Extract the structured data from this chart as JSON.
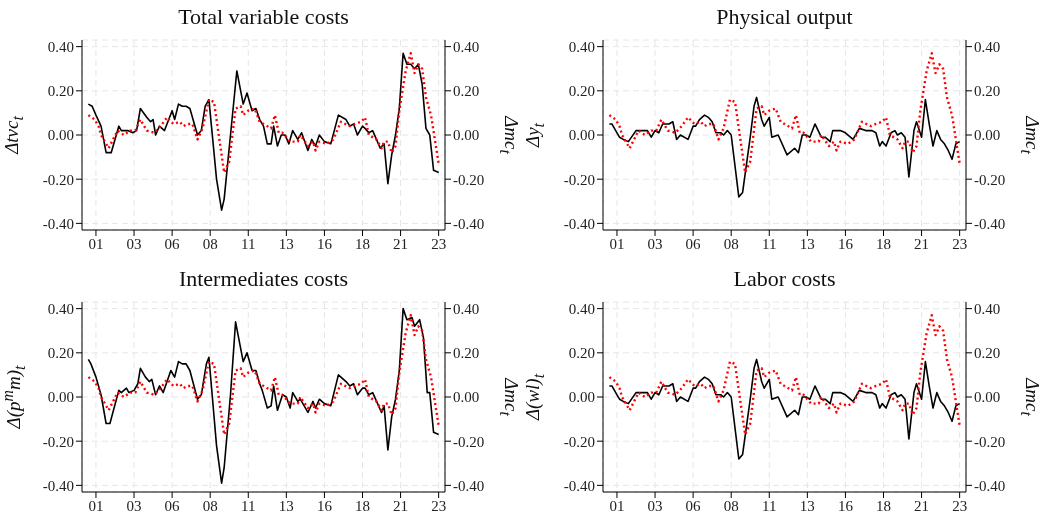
{
  "chart_data": [
    {
      "type": "line",
      "title": "Total variable costs",
      "ylabel": "Δtvc$_{t}$",
      "y2label": "Δmc$_{t}$",
      "xlim": [
        "2000-02",
        "2023-12"
      ],
      "ylim": [
        -0.43,
        0.43
      ],
      "y2lim": [
        -0.43,
        0.43
      ],
      "xticks": [
        {
          "value": "2001-01",
          "label": "01"
        },
        {
          "value": "2003-07",
          "label": "03"
        },
        {
          "value": "2006-01",
          "label": "06"
        },
        {
          "value": "2008-07",
          "label": "08"
        },
        {
          "value": "2011-01",
          "label": "11"
        },
        {
          "value": "2013-07",
          "label": "13"
        },
        {
          "value": "2016-01",
          "label": "16"
        },
        {
          "value": "2018-07",
          "label": "18"
        },
        {
          "value": "2021-01",
          "label": "21"
        },
        {
          "value": "2023-07",
          "label": "23"
        }
      ],
      "yticks": [
        {
          "value": -0.4,
          "label": "-0.40"
        },
        {
          "value": -0.2,
          "label": "-0.20"
        },
        {
          "value": 0,
          "label": "0.00"
        },
        {
          "value": 0.2,
          "label": "0.20"
        },
        {
          "value": 0.4,
          "label": "0.40"
        }
      ],
      "y2ticks": [
        {
          "value": -0.4,
          "label": "-0.40"
        },
        {
          "value": -0.2,
          "label": "-0.20"
        },
        {
          "value": 0,
          "label": "0.00"
        },
        {
          "value": 0.2,
          "label": "0.20"
        },
        {
          "value": 0.4,
          "label": "0.40"
        }
      ],
      "grid": true,
      "series": [
        {
          "color": "#000000",
          "line_style": "solid",
          "x": [
            "2000-07",
            "2000-10",
            "2001-01",
            "2001-05",
            "2001-09",
            "2002-01",
            "2002-07",
            "2002-09",
            "2003-02",
            "2003-06",
            "2003-09",
            "2003-12",
            "2004-05",
            "2004-08",
            "2004-10",
            "2004-12",
            "2005-03",
            "2005-07",
            "2006-01",
            "2006-03",
            "2006-06",
            "2006-09",
            "2006-12",
            "2007-03",
            "2007-09",
            "2007-12",
            "2008-03",
            "2008-06",
            "2008-12",
            "2009-04",
            "2009-06",
            "2009-11",
            "2010-04",
            "2010-09",
            "2010-12",
            "2011-04",
            "2011-07",
            "2011-10",
            "2012-01",
            "2012-04",
            "2012-07",
            "2012-09",
            "2012-12",
            "2013-03",
            "2013-06",
            "2013-09",
            "2013-12",
            "2014-04",
            "2014-07",
            "2014-12",
            "2015-03",
            "2015-06",
            "2015-09",
            "2016-01",
            "2016-06",
            "2016-12",
            "2017-06",
            "2017-09",
            "2017-12",
            "2018-03",
            "2018-07",
            "2018-09",
            "2018-12",
            "2019-03",
            "2019-09",
            "2019-12",
            "2020-03",
            "2020-06",
            "2020-09",
            "2020-12",
            "2021-03",
            "2021-06",
            "2021-09",
            "2021-12",
            "2022-03",
            "2022-06",
            "2022-09",
            "2022-12",
            "2023-03",
            "2023-07"
          ],
          "values": [
            0.14,
            0.13,
            0.09,
            0.04,
            -0.08,
            -0.08,
            0.04,
            0.02,
            0.02,
            0.01,
            0.02,
            0.12,
            0.08,
            0.06,
            0.07,
            0.0,
            0.04,
            0.02,
            0.11,
            0.07,
            0.14,
            0.13,
            0.13,
            0.12,
            0.0,
            0.02,
            0.13,
            0.16,
            -0.2,
            -0.34,
            -0.29,
            0.0,
            0.29,
            0.14,
            0.19,
            0.11,
            0.12,
            0.07,
            0.04,
            -0.04,
            -0.04,
            0.04,
            -0.05,
            0.0,
            0.0,
            -0.04,
            0.02,
            -0.02,
            0.01,
            -0.07,
            -0.02,
            -0.05,
            0.0,
            -0.03,
            -0.04,
            0.09,
            0.07,
            0.04,
            0.05,
            0.0,
            0.04,
            0.03,
            0.01,
            0.02,
            -0.06,
            -0.04,
            -0.22,
            -0.09,
            0.0,
            0.12,
            0.37,
            0.32,
            0.32,
            0.3,
            0.32,
            0.23,
            0.03,
            0.0,
            -0.16,
            -0.17
          ]
        },
        {
          "color": "#ff0000",
          "line_style": "dotted",
          "axis": "y2",
          "x": [
            "2000-07",
            "2000-12",
            "2001-03",
            "2001-05",
            "2001-11",
            "2002-06",
            "2002-11",
            "2003-04",
            "2003-08",
            "2003-12",
            "2004-05",
            "2004-11",
            "2005-04",
            "2005-09",
            "2006-02",
            "2006-07",
            "2006-10",
            "2007-01",
            "2007-05",
            "2007-09",
            "2008-01",
            "2008-06",
            "2008-10",
            "2009-06",
            "2009-10",
            "2010-03",
            "2010-07",
            "2010-09",
            "2011-01",
            "2011-06",
            "2011-10",
            "2012-04",
            "2012-07",
            "2012-10",
            "2013-01",
            "2013-04",
            "2013-10",
            "2014-04",
            "2014-06",
            "2014-12",
            "2015-04",
            "2015-06",
            "2015-09",
            "2016-03",
            "2016-08",
            "2017-02",
            "2017-09",
            "2018-01",
            "2018-06",
            "2018-09",
            "2018-12",
            "2019-06",
            "2019-10",
            "2019-12",
            "2020-03",
            "2020-06",
            "2020-09",
            "2020-12",
            "2021-05",
            "2021-09",
            "2021-12",
            "2022-03",
            "2022-06",
            "2022-09",
            "2023-01",
            "2023-07"
          ],
          "values": [
            0.09,
            0.07,
            0.04,
            0.0,
            -0.06,
            0.02,
            0.0,
            0.02,
            0.02,
            0.07,
            0.02,
            0.01,
            0.04,
            0.08,
            0.05,
            0.06,
            0.04,
            0.05,
            0.05,
            -0.02,
            0.03,
            0.16,
            0.15,
            -0.17,
            -0.12,
            0.12,
            0.13,
            0.09,
            0.11,
            0.12,
            0.06,
            0.04,
            0.03,
            0.09,
            0.01,
            0.01,
            -0.03,
            -0.03,
            0.0,
            -0.05,
            -0.03,
            -0.07,
            -0.03,
            -0.04,
            -0.02,
            0.06,
            0.04,
            0.05,
            0.06,
            0.08,
            0.0,
            -0.02,
            -0.06,
            -0.03,
            -0.03,
            -0.08,
            -0.05,
            0.11,
            0.29,
            0.37,
            0.28,
            0.32,
            0.3,
            0.17,
            0.09,
            -0.13
          ]
        }
      ]
    },
    {
      "type": "line",
      "title": "Physical output",
      "ylabel": "Δy$_{t}$",
      "y2label": "Δmc$_{t}$",
      "xlim": [
        "2000-02",
        "2023-12"
      ],
      "ylim": [
        -0.43,
        0.43
      ],
      "y2lim": [
        -0.43,
        0.43
      ],
      "xticks": [
        {
          "value": "2001-01",
          "label": "01"
        },
        {
          "value": "2003-07",
          "label": "03"
        },
        {
          "value": "2006-01",
          "label": "06"
        },
        {
          "value": "2008-07",
          "label": "08"
        },
        {
          "value": "2011-01",
          "label": "11"
        },
        {
          "value": "2013-07",
          "label": "13"
        },
        {
          "value": "2016-01",
          "label": "16"
        },
        {
          "value": "2018-07",
          "label": "18"
        },
        {
          "value": "2021-01",
          "label": "21"
        },
        {
          "value": "2023-07",
          "label": "23"
        }
      ],
      "yticks": [
        {
          "value": -0.4,
          "label": "-0.40"
        },
        {
          "value": -0.2,
          "label": "-0.20"
        },
        {
          "value": 0,
          "label": "0.00"
        },
        {
          "value": 0.2,
          "label": "0.20"
        },
        {
          "value": 0.4,
          "label": "0.40"
        }
      ],
      "y2ticks": [
        {
          "value": -0.4,
          "label": "-0.40"
        },
        {
          "value": -0.2,
          "label": "-0.20"
        },
        {
          "value": 0,
          "label": "0.00"
        },
        {
          "value": 0.2,
          "label": "0.20"
        },
        {
          "value": 0.4,
          "label": "0.40"
        }
      ],
      "grid": true,
      "series": [
        {
          "color": "#000000",
          "line_style": "solid",
          "x": [
            "2000-07",
            "2000-09",
            "2001-01",
            "2001-03",
            "2001-06",
            "2001-10",
            "2002-04",
            "2002-07",
            "2003-01",
            "2003-04",
            "2003-07",
            "2003-10",
            "2004-01",
            "2004-06",
            "2004-09",
            "2004-12",
            "2005-03",
            "2005-09",
            "2006-01",
            "2006-03",
            "2006-06",
            "2006-10",
            "2007-01",
            "2007-04",
            "2007-07",
            "2007-11",
            "2008-01",
            "2008-04",
            "2008-07",
            "2009-01",
            "2009-04",
            "2009-10",
            "2010-01",
            "2010-03",
            "2010-07",
            "2010-09",
            "2011-01",
            "2011-03",
            "2011-08",
            "2012-03",
            "2012-09",
            "2012-12",
            "2013-03",
            "2013-06",
            "2013-09",
            "2014-01",
            "2014-06",
            "2014-09",
            "2015-01",
            "2015-03",
            "2015-09",
            "2016-01",
            "2016-07",
            "2016-12",
            "2017-05",
            "2017-10",
            "2018-01",
            "2018-04",
            "2018-06",
            "2018-09",
            "2019-01",
            "2019-04",
            "2019-06",
            "2019-09",
            "2019-12",
            "2020-03",
            "2020-07",
            "2020-09",
            "2021-01",
            "2021-04",
            "2021-07",
            "2021-10",
            "2022-01",
            "2022-04",
            "2022-07",
            "2022-10",
            "2023-01",
            "2023-04",
            "2023-07"
          ],
          "values": [
            0.05,
            0.05,
            0.01,
            -0.01,
            -0.02,
            -0.03,
            0.02,
            0.02,
            0.02,
            -0.01,
            0.02,
            0.01,
            0.05,
            0.05,
            0.06,
            -0.02,
            0.0,
            -0.02,
            0.04,
            0.04,
            0.07,
            0.09,
            0.08,
            0.06,
            0.01,
            0.01,
            0.0,
            0.02,
            0.0,
            -0.28,
            -0.26,
            -0.01,
            0.13,
            0.17,
            0.07,
            0.04,
            0.08,
            -0.01,
            0.0,
            -0.09,
            -0.06,
            -0.08,
            0.0,
            0.0,
            -0.01,
            0.05,
            -0.01,
            -0.01,
            -0.03,
            0.02,
            0.02,
            0.01,
            -0.02,
            0.03,
            0.02,
            0.02,
            0.01,
            -0.05,
            -0.03,
            -0.05,
            0.01,
            0.02,
            0.0,
            0.01,
            -0.01,
            -0.19,
            0.02,
            0.06,
            -0.01,
            0.16,
            0.05,
            -0.05,
            0.02,
            -0.02,
            -0.04,
            -0.07,
            -0.11,
            -0.04,
            -0.03
          ]
        },
        {
          "color": "#ff0000",
          "line_style": "dotted",
          "axis": "y2",
          "x": [
            "2000-07",
            "2000-12",
            "2001-03",
            "2001-05",
            "2001-11",
            "2002-06",
            "2002-11",
            "2003-04",
            "2003-08",
            "2003-12",
            "2004-05",
            "2004-11",
            "2005-04",
            "2005-09",
            "2006-02",
            "2006-07",
            "2006-10",
            "2007-01",
            "2007-05",
            "2007-09",
            "2008-01",
            "2008-06",
            "2008-10",
            "2009-06",
            "2009-10",
            "2010-03",
            "2010-07",
            "2010-09",
            "2011-01",
            "2011-06",
            "2011-10",
            "2012-04",
            "2012-07",
            "2012-10",
            "2013-01",
            "2013-04",
            "2013-10",
            "2014-04",
            "2014-06",
            "2014-12",
            "2015-04",
            "2015-06",
            "2015-09",
            "2016-03",
            "2016-08",
            "2017-02",
            "2017-09",
            "2018-01",
            "2018-06",
            "2018-09",
            "2018-12",
            "2019-06",
            "2019-10",
            "2019-12",
            "2020-03",
            "2020-06",
            "2020-09",
            "2020-12",
            "2021-05",
            "2021-09",
            "2021-12",
            "2022-03",
            "2022-06",
            "2022-09",
            "2023-01",
            "2023-07"
          ],
          "values": [
            0.09,
            0.07,
            0.04,
            0.0,
            -0.06,
            0.02,
            0.0,
            0.02,
            0.02,
            0.07,
            0.02,
            0.01,
            0.04,
            0.08,
            0.05,
            0.06,
            0.04,
            0.05,
            0.05,
            -0.02,
            0.03,
            0.16,
            0.15,
            -0.17,
            -0.12,
            0.12,
            0.13,
            0.09,
            0.11,
            0.12,
            0.06,
            0.04,
            0.03,
            0.09,
            0.01,
            0.01,
            -0.03,
            -0.03,
            0.0,
            -0.05,
            -0.03,
            -0.07,
            -0.03,
            -0.04,
            -0.02,
            0.06,
            0.04,
            0.05,
            0.06,
            0.08,
            0.0,
            -0.02,
            -0.06,
            -0.03,
            -0.03,
            -0.08,
            -0.05,
            0.11,
            0.29,
            0.37,
            0.28,
            0.32,
            0.3,
            0.17,
            0.09,
            -0.13
          ]
        }
      ]
    },
    {
      "type": "line",
      "title": "Intermediates costs",
      "ylabel": "Δ(p$^{m}$m)$_{t}$",
      "y2label": "Δmc$_{t}$",
      "xlim": [
        "2000-02",
        "2023-12"
      ],
      "ylim": [
        -0.43,
        0.43
      ],
      "y2lim": [
        -0.43,
        0.43
      ],
      "xticks": [
        {
          "value": "2001-01",
          "label": "01"
        },
        {
          "value": "2003-07",
          "label": "03"
        },
        {
          "value": "2006-01",
          "label": "06"
        },
        {
          "value": "2008-07",
          "label": "08"
        },
        {
          "value": "2011-01",
          "label": "11"
        },
        {
          "value": "2013-07",
          "label": "13"
        },
        {
          "value": "2016-01",
          "label": "16"
        },
        {
          "value": "2018-07",
          "label": "18"
        },
        {
          "value": "2021-01",
          "label": "21"
        },
        {
          "value": "2023-07",
          "label": "23"
        }
      ],
      "yticks": [
        {
          "value": -0.4,
          "label": "-0.40"
        },
        {
          "value": -0.2,
          "label": "-0.20"
        },
        {
          "value": 0,
          "label": "0.00"
        },
        {
          "value": 0.2,
          "label": "0.20"
        },
        {
          "value": 0.4,
          "label": "0.40"
        }
      ],
      "y2ticks": [
        {
          "value": -0.4,
          "label": "-0.40"
        },
        {
          "value": -0.2,
          "label": "-0.20"
        },
        {
          "value": 0,
          "label": "0.00"
        },
        {
          "value": 0.2,
          "label": "0.20"
        },
        {
          "value": 0.4,
          "label": "0.40"
        }
      ],
      "grid": true,
      "series": [
        {
          "color": "#000000",
          "line_style": "solid",
          "x": [
            "2000-07",
            "2000-09",
            "2001-01",
            "2001-05",
            "2001-09",
            "2001-12",
            "2002-07",
            "2002-09",
            "2003-01",
            "2003-03",
            "2003-07",
            "2003-10",
            "2003-12",
            "2004-04",
            "2004-07",
            "2004-09",
            "2004-12",
            "2005-03",
            "2005-06",
            "2005-12",
            "2006-03",
            "2006-06",
            "2006-09",
            "2006-12",
            "2007-03",
            "2007-09",
            "2007-12",
            "2008-04",
            "2008-06",
            "2008-12",
            "2009-04",
            "2009-06",
            "2009-11",
            "2010-03",
            "2010-09",
            "2010-12",
            "2011-04",
            "2011-07",
            "2011-10",
            "2011-12",
            "2012-04",
            "2012-07",
            "2012-09",
            "2012-12",
            "2013-04",
            "2013-07",
            "2013-10",
            "2013-12",
            "2014-04",
            "2014-06",
            "2014-12",
            "2015-04",
            "2015-06",
            "2015-09",
            "2016-01",
            "2016-06",
            "2016-12",
            "2017-06",
            "2017-09",
            "2017-12",
            "2018-03",
            "2018-07",
            "2018-09",
            "2018-12",
            "2019-03",
            "2019-10",
            "2019-12",
            "2020-03",
            "2020-06",
            "2020-09",
            "2020-12",
            "2021-03",
            "2021-06",
            "2021-10",
            "2021-12",
            "2022-04",
            "2022-07",
            "2022-10",
            "2022-12",
            "2023-03",
            "2023-07"
          ],
          "values": [
            0.17,
            0.15,
            0.09,
            0.01,
            -0.12,
            -0.12,
            0.03,
            0.02,
            0.04,
            0.02,
            0.03,
            0.06,
            0.13,
            0.09,
            0.07,
            0.08,
            0.01,
            0.05,
            0.02,
            0.12,
            0.09,
            0.16,
            0.15,
            0.15,
            0.12,
            -0.01,
            0.01,
            0.15,
            0.18,
            -0.22,
            -0.39,
            -0.32,
            0.01,
            0.34,
            0.16,
            0.2,
            0.12,
            0.12,
            0.06,
            0.03,
            -0.05,
            -0.04,
            0.05,
            -0.06,
            0.01,
            0.0,
            -0.05,
            0.02,
            -0.02,
            -0.01,
            -0.07,
            -0.02,
            -0.05,
            -0.01,
            -0.03,
            -0.04,
            0.1,
            0.07,
            0.05,
            0.06,
            0.01,
            0.04,
            0.04,
            0.01,
            0.02,
            -0.07,
            -0.04,
            -0.24,
            -0.09,
            -0.01,
            0.12,
            0.4,
            0.35,
            0.36,
            0.32,
            0.35,
            0.27,
            0.02,
            0.02,
            -0.16,
            -0.17
          ]
        },
        {
          "color": "#ff0000",
          "line_style": "dotted",
          "axis": "y2",
          "x": [
            "2000-07",
            "2000-12",
            "2001-03",
            "2001-05",
            "2001-11",
            "2002-06",
            "2002-11",
            "2003-04",
            "2003-08",
            "2003-12",
            "2004-05",
            "2004-11",
            "2005-04",
            "2005-09",
            "2006-02",
            "2006-07",
            "2006-10",
            "2007-01",
            "2007-05",
            "2007-09",
            "2008-01",
            "2008-06",
            "2008-10",
            "2009-06",
            "2009-10",
            "2010-03",
            "2010-07",
            "2010-09",
            "2011-01",
            "2011-06",
            "2011-10",
            "2012-04",
            "2012-07",
            "2012-10",
            "2013-01",
            "2013-04",
            "2013-10",
            "2014-04",
            "2014-06",
            "2014-12",
            "2015-04",
            "2015-06",
            "2015-09",
            "2016-03",
            "2016-08",
            "2017-02",
            "2017-09",
            "2018-01",
            "2018-06",
            "2018-09",
            "2018-12",
            "2019-06",
            "2019-10",
            "2019-12",
            "2020-03",
            "2020-06",
            "2020-09",
            "2020-12",
            "2021-05",
            "2021-09",
            "2021-12",
            "2022-03",
            "2022-06",
            "2022-09",
            "2023-01",
            "2023-07"
          ],
          "values": [
            0.09,
            0.07,
            0.04,
            0.0,
            -0.06,
            0.02,
            0.0,
            0.02,
            0.02,
            0.07,
            0.02,
            0.01,
            0.04,
            0.08,
            0.05,
            0.06,
            0.04,
            0.05,
            0.05,
            -0.02,
            0.03,
            0.16,
            0.15,
            -0.17,
            -0.12,
            0.12,
            0.13,
            0.09,
            0.11,
            0.12,
            0.06,
            0.04,
            0.03,
            0.09,
            0.01,
            0.01,
            -0.03,
            -0.03,
            0.0,
            -0.05,
            -0.03,
            -0.07,
            -0.03,
            -0.04,
            -0.02,
            0.06,
            0.04,
            0.05,
            0.06,
            0.08,
            0.0,
            -0.02,
            -0.06,
            -0.03,
            -0.03,
            -0.08,
            -0.05,
            0.11,
            0.29,
            0.37,
            0.28,
            0.32,
            0.3,
            0.17,
            0.09,
            -0.13
          ]
        }
      ]
    },
    {
      "type": "line",
      "title": "Labor costs",
      "ylabel": "Δ(wl)$_{t}$",
      "y2label": "Δmc$_{t}$",
      "xlim": [
        "2000-02",
        "2023-12"
      ],
      "ylim": [
        -0.43,
        0.43
      ],
      "y2lim": [
        -0.43,
        0.43
      ],
      "xticks": [
        {
          "value": "2001-01",
          "label": "01"
        },
        {
          "value": "2003-07",
          "label": "03"
        },
        {
          "value": "2006-01",
          "label": "06"
        },
        {
          "value": "2008-07",
          "label": "08"
        },
        {
          "value": "2011-01",
          "label": "11"
        },
        {
          "value": "2013-07",
          "label": "13"
        },
        {
          "value": "2016-01",
          "label": "16"
        },
        {
          "value": "2018-07",
          "label": "18"
        },
        {
          "value": "2021-01",
          "label": "21"
        },
        {
          "value": "2023-07",
          "label": "23"
        }
      ],
      "yticks": [
        {
          "value": -0.4,
          "label": "-0.40"
        },
        {
          "value": -0.2,
          "label": "-0.20"
        },
        {
          "value": 0,
          "label": "0.00"
        },
        {
          "value": 0.2,
          "label": "0.20"
        },
        {
          "value": 0.4,
          "label": "0.40"
        }
      ],
      "y2ticks": [
        {
          "value": -0.4,
          "label": "-0.40"
        },
        {
          "value": -0.2,
          "label": "-0.20"
        },
        {
          "value": 0,
          "label": "0.00"
        },
        {
          "value": 0.2,
          "label": "0.20"
        },
        {
          "value": 0.4,
          "label": "0.40"
        }
      ],
      "grid": true,
      "series": [
        {
          "color": "#000000",
          "line_style": "solid",
          "x": [
            "2000-07",
            "2000-09",
            "2001-01",
            "2001-03",
            "2001-06",
            "2001-10",
            "2002-04",
            "2002-07",
            "2003-01",
            "2003-04",
            "2003-07",
            "2003-10",
            "2004-01",
            "2004-06",
            "2004-09",
            "2004-12",
            "2005-03",
            "2005-09",
            "2006-01",
            "2006-03",
            "2006-06",
            "2006-10",
            "2007-01",
            "2007-04",
            "2007-07",
            "2007-11",
            "2008-01",
            "2008-04",
            "2008-07",
            "2009-01",
            "2009-04",
            "2009-10",
            "2010-01",
            "2010-03",
            "2010-07",
            "2010-09",
            "2011-01",
            "2011-03",
            "2011-08",
            "2012-03",
            "2012-09",
            "2012-12",
            "2013-03",
            "2013-06",
            "2013-09",
            "2014-01",
            "2014-06",
            "2014-09",
            "2015-01",
            "2015-03",
            "2015-09",
            "2016-01",
            "2016-07",
            "2016-12",
            "2017-05",
            "2017-10",
            "2018-01",
            "2018-04",
            "2018-06",
            "2018-09",
            "2019-01",
            "2019-04",
            "2019-06",
            "2019-09",
            "2019-12",
            "2020-03",
            "2020-07",
            "2020-09",
            "2021-01",
            "2021-04",
            "2021-07",
            "2021-10",
            "2022-01",
            "2022-04",
            "2022-07",
            "2022-10",
            "2023-01",
            "2023-04",
            "2023-07"
          ],
          "values": [
            0.05,
            0.05,
            0.01,
            -0.01,
            -0.02,
            -0.03,
            0.02,
            0.02,
            0.02,
            -0.01,
            0.02,
            0.01,
            0.05,
            0.05,
            0.06,
            -0.02,
            0.0,
            -0.02,
            0.04,
            0.04,
            0.07,
            0.09,
            0.08,
            0.06,
            0.01,
            0.01,
            0.0,
            0.02,
            0.0,
            -0.28,
            -0.26,
            -0.01,
            0.13,
            0.17,
            0.07,
            0.04,
            0.08,
            -0.01,
            0.0,
            -0.09,
            -0.06,
            -0.08,
            0.0,
            0.0,
            -0.01,
            0.05,
            -0.01,
            -0.01,
            -0.03,
            0.02,
            0.02,
            0.01,
            -0.02,
            0.03,
            0.02,
            0.02,
            0.01,
            -0.05,
            -0.03,
            -0.05,
            0.01,
            0.02,
            0.0,
            0.01,
            -0.01,
            -0.19,
            0.02,
            0.06,
            -0.01,
            0.16,
            0.05,
            -0.05,
            0.02,
            -0.02,
            -0.04,
            -0.07,
            -0.11,
            -0.04,
            -0.03
          ]
        },
        {
          "color": "#ff0000",
          "line_style": "dotted",
          "axis": "y2",
          "x": [
            "2000-07",
            "2000-12",
            "2001-03",
            "2001-05",
            "2001-11",
            "2002-06",
            "2002-11",
            "2003-04",
            "2003-08",
            "2003-12",
            "2004-05",
            "2004-11",
            "2005-04",
            "2005-09",
            "2006-02",
            "2006-07",
            "2006-10",
            "2007-01",
            "2007-05",
            "2007-09",
            "2008-01",
            "2008-06",
            "2008-10",
            "2009-06",
            "2009-10",
            "2010-03",
            "2010-07",
            "2010-09",
            "2011-01",
            "2011-06",
            "2011-10",
            "2012-04",
            "2012-07",
            "2012-10",
            "2013-01",
            "2013-04",
            "2013-10",
            "2014-04",
            "2014-06",
            "2014-12",
            "2015-04",
            "2015-06",
            "2015-09",
            "2016-03",
            "2016-08",
            "2017-02",
            "2017-09",
            "2018-01",
            "2018-06",
            "2018-09",
            "2018-12",
            "2019-06",
            "2019-10",
            "2019-12",
            "2020-03",
            "2020-06",
            "2020-09",
            "2020-12",
            "2021-05",
            "2021-09",
            "2021-12",
            "2022-03",
            "2022-06",
            "2022-09",
            "2023-01",
            "2023-07"
          ],
          "values": [
            0.09,
            0.07,
            0.04,
            0.0,
            -0.06,
            0.02,
            0.0,
            0.02,
            0.02,
            0.07,
            0.02,
            0.01,
            0.04,
            0.08,
            0.05,
            0.06,
            0.04,
            0.05,
            0.05,
            -0.02,
            0.03,
            0.16,
            0.15,
            -0.17,
            -0.12,
            0.12,
            0.13,
            0.09,
            0.11,
            0.12,
            0.06,
            0.04,
            0.03,
            0.09,
            0.01,
            0.01,
            -0.03,
            -0.03,
            0.0,
            -0.05,
            -0.03,
            -0.07,
            -0.03,
            -0.04,
            -0.02,
            0.06,
            0.04,
            0.05,
            0.06,
            0.08,
            0.0,
            -0.02,
            -0.06,
            -0.03,
            -0.03,
            -0.08,
            -0.05,
            0.11,
            0.29,
            0.37,
            0.28,
            0.32,
            0.3,
            0.17,
            0.09,
            -0.13
          ]
        }
      ]
    }
  ]
}
